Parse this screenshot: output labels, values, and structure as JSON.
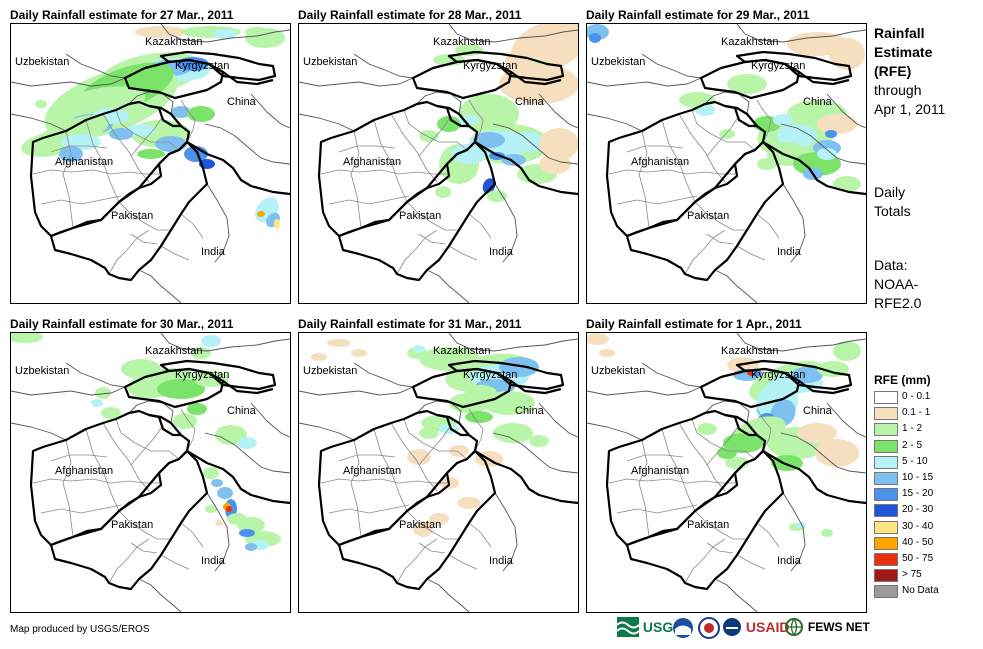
{
  "panels": [
    {
      "title": "Daily Rainfall estimate for 27 Mar., 2011",
      "day": 0
    },
    {
      "title": "Daily Rainfall estimate for 28 Mar., 2011",
      "day": 1
    },
    {
      "title": "Daily Rainfall estimate for 29 Mar., 2011",
      "day": 2
    },
    {
      "title": "Daily Rainfall estimate for 30 Mar., 2011",
      "day": 3
    },
    {
      "title": "Daily Rainfall estimate for 31 Mar., 2011",
      "day": 4
    },
    {
      "title": "Daily Rainfall estimate for 1 Apr., 2011",
      "day": 5
    }
  ],
  "countries": {
    "kazakhstan": "Kazakhstan",
    "uzbekistan": "Uzbekistan",
    "kyrgyzstan": "Kyrgyzstan",
    "china": "China",
    "afghanistan": "Afghanistan",
    "pakistan": "Pakistan",
    "india": "India"
  },
  "sidebar": {
    "line1": "Rainfall",
    "line2": "Estimate",
    "line3": "(RFE)",
    "line4": "through",
    "line5": "Apr 1, 2011",
    "totals1": "Daily",
    "totals2": "Totals",
    "data1": "Data:",
    "data2": "NOAA-",
    "data3": "RFE2.0"
  },
  "legend": {
    "title": "RFE (mm)",
    "items": [
      {
        "label": "0 - 0.1",
        "color": "#ffffff"
      },
      {
        "label": "0.1 - 1",
        "color": "#f5dfbf"
      },
      {
        "label": "1 - 2",
        "color": "#b9f5a8"
      },
      {
        "label": "2 - 5",
        "color": "#7be36a"
      },
      {
        "label": "5 - 10",
        "color": "#b5f2f5"
      },
      {
        "label": "10 - 15",
        "color": "#7ec0f0"
      },
      {
        "label": "15 - 20",
        "color": "#4a92ec"
      },
      {
        "label": "20 - 30",
        "color": "#1f55d8"
      },
      {
        "label": "30 - 40",
        "color": "#ffe680"
      },
      {
        "label": "40 - 50",
        "color": "#ffa500"
      },
      {
        "label": "50 - 75",
        "color": "#e8300a"
      },
      {
        "label": "> 75",
        "color": "#a01818"
      },
      {
        "label": "No Data",
        "color": "#9a9a9a"
      }
    ]
  },
  "footer": {
    "credit": "Map produced by USGS/EROS",
    "logo_usgs": "USGS",
    "logo_usaid": "USAID",
    "logo_fewsnet": "FEWS NET"
  }
}
